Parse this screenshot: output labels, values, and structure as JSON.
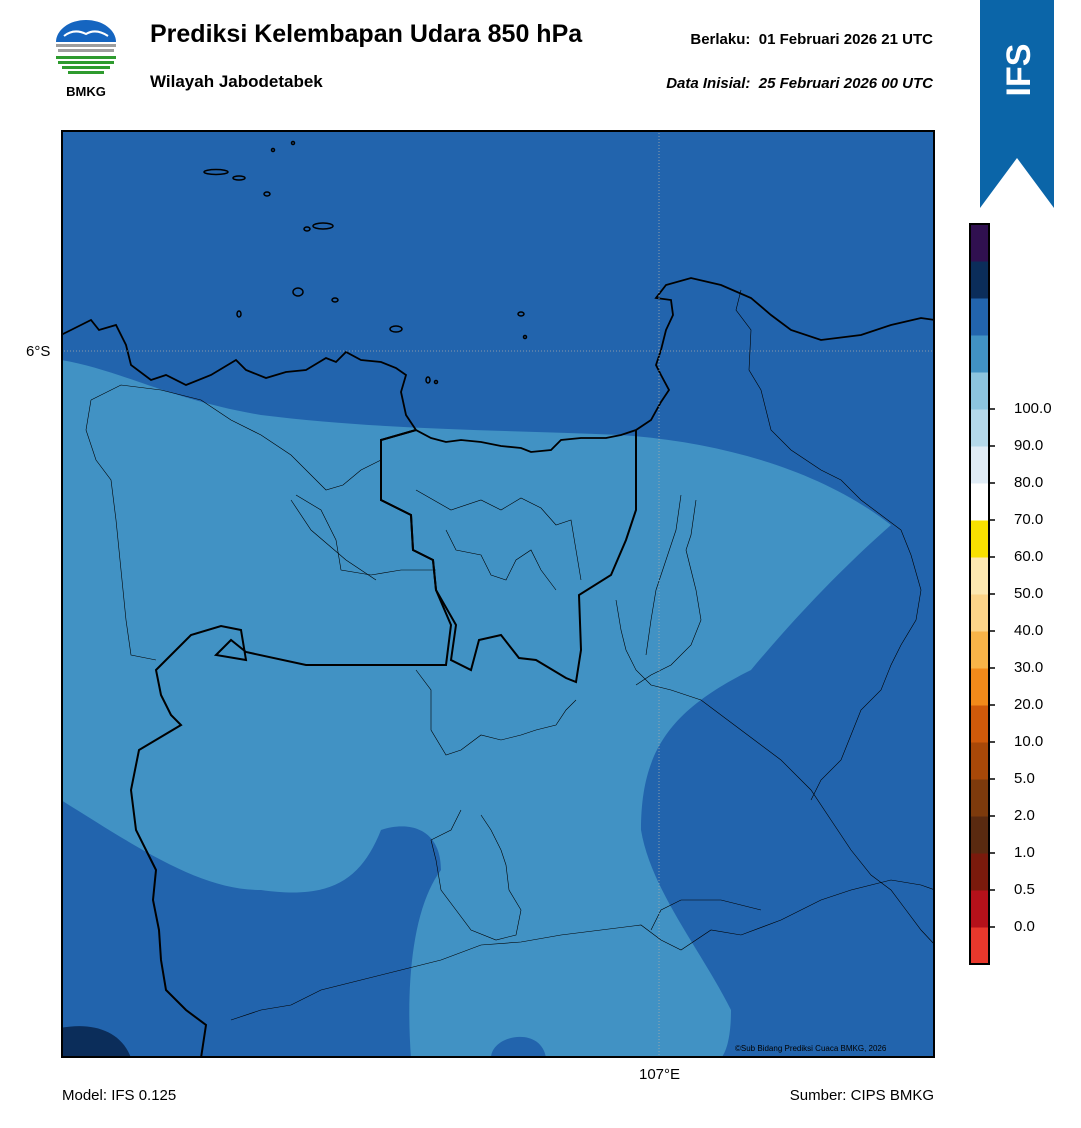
{
  "header": {
    "logo_text": "BMKG",
    "title": "Prediksi Kelembapan Udara 850 hPa",
    "subtitle": "Wilayah Jabodetabek",
    "valid_label": "Berlaku:",
    "valid_time": "01 Februari 2026 21 UTC",
    "init_label": "Data Inisial:",
    "init_time": "25 Februari 2026 00 UTC"
  },
  "ribbon": {
    "label": "IFS",
    "color": "#0b65a8"
  },
  "map": {
    "lat_label": "6°S",
    "lon_label": "107°E",
    "credit": "©Sub Bidang Prediksi Cuaca BMKG, 2026",
    "background_color": "#2264ad",
    "inner_color": "#4192c4",
    "dark_color": "#0b2d5a"
  },
  "colorbar": {
    "ticks": [
      "0.0",
      "0.5",
      "1.0",
      "2.0",
      "5.0",
      "10.0",
      "20.0",
      "30.0",
      "40.0",
      "50.0",
      "60.0",
      "70.0",
      "80.0",
      "90.0",
      "100.0"
    ],
    "colors": [
      "#e8382c",
      "#b5111a",
      "#7a1a0c",
      "#5a2a10",
      "#7d3a0c",
      "#a84808",
      "#d05a0a",
      "#f28a1a",
      "#f8b448",
      "#fcd488",
      "#fde8b0",
      "#f8e000",
      "#ffffff",
      "#e0ecf6",
      "#b4d8ea",
      "#8cc4de",
      "#4192c4",
      "#2264ad",
      "#0b2d5a",
      "#301050"
    ]
  },
  "footer": {
    "model": "Model: IFS 0.125",
    "source": "Sumber: CIPS BMKG"
  }
}
